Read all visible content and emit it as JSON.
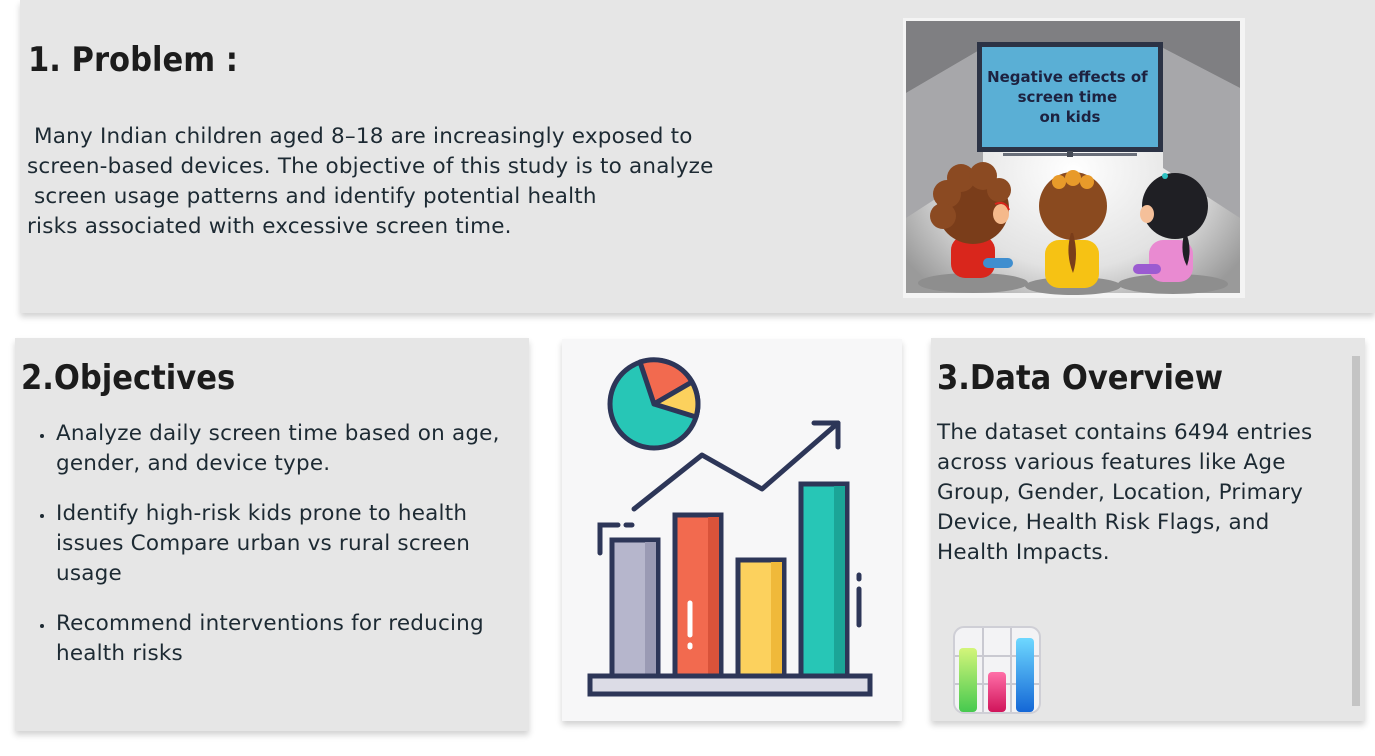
{
  "problem": {
    "heading": "1. Problem :",
    "lines": [
      " Many Indian children aged 8–18 are increasingly exposed to",
      "screen-based devices. The objective of this study is to analyze",
      " screen usage patterns and identify potential health",
      "risks associated with excessive screen time."
    ],
    "image_caption": [
      "Negative effects of",
      "screen time",
      "on kids"
    ]
  },
  "objectives": {
    "heading": "2.Objectives",
    "items": [
      [
        "Analyze daily screen time based on age,",
        "gender, and device type."
      ],
      [
        "Identify high-risk kids prone to health",
        "issues Compare urban vs rural screen",
        "usage"
      ],
      [
        "Recommend interventions for reducing",
        "health risks"
      ]
    ]
  },
  "data_overview": {
    "heading": "3.Data Overview",
    "lines": [
      "The dataset contains 6494 entries",
      "across various features like Age",
      "Group, Gender, Location, Primary",
      "Device, Health Risk Flags, and",
      "Health Impacts."
    ]
  },
  "colors": {
    "panel": "#e6e6e6",
    "tv_screen": "#5aafd5",
    "bar_gray": "#b6b6cc",
    "bar_red": "#f26a4f",
    "bar_yellow": "#fcd15d",
    "bar_teal": "#27c6b6",
    "outline": "#2d3658"
  },
  "icons": [
    "kids-watching-tv-illustration",
    "growth-bar-chart-illustration",
    "bar-chart-app-icon"
  ]
}
